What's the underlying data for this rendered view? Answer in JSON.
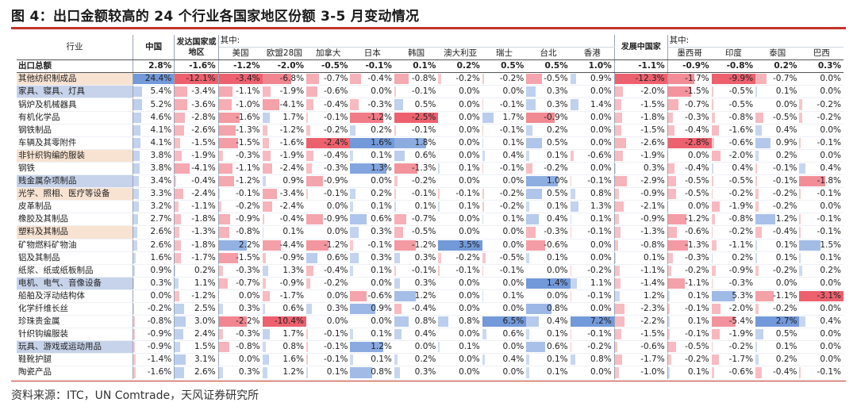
{
  "title": "图 4：出口金额较高的 24 个行业各国家地区份额 3-5 月变动情况",
  "source": "资料来源：ITC，UN Comtrade，天风证券研究所",
  "colors": {
    "positive": "#4f7fd0",
    "negative": "#e8384a",
    "accent": "#c4342a"
  },
  "headers": {
    "industry": "行业",
    "china": "中国",
    "developed": "发达国家或地区",
    "developed_sub": "其中:",
    "developed_list": [
      "美国",
      "欧盟28国",
      "加拿大",
      "日本",
      "韩国",
      "澳大利亚",
      "瑞士",
      "台北",
      "香港"
    ],
    "developing": "发展中国家",
    "developing_sub": "其中:",
    "developing_list": [
      "墨西哥",
      "印度",
      "泰国",
      "巴西"
    ]
  },
  "chart_data": {
    "type": "table",
    "title": "出口金额较高的 24 个行业各国家地区份额 3-5 月变动情况",
    "columns": [
      "中国",
      "发达国家或地区",
      "美国",
      "欧盟28国",
      "加拿大",
      "日本",
      "韩国",
      "澳大利亚",
      "瑞士",
      "台北",
      "香港",
      "发展中国家",
      "墨西哥",
      "印度",
      "泰国",
      "巴西"
    ],
    "rows": [
      {
        "name": "出口总额",
        "total": true,
        "values": [
          "2.8%",
          "-1.6%",
          "-1.2%",
          "-2.0%",
          "-0.5%",
          "-0.1%",
          "0.1%",
          "0.2%",
          "0.5%",
          "0.5%",
          "1.0%",
          "-1.1%",
          "-0.9%",
          "-0.8%",
          "0.2%",
          "0.3%"
        ]
      },
      {
        "name": "其他纺织制成品",
        "hl": "orange",
        "values": [
          "24.4%",
          "-12.1%",
          "-3.4%",
          "-6.8%",
          "-0.7%",
          "-0.4%",
          "-0.8%",
          "-0.2%",
          "-0.2%",
          "-0.5%",
          "0.9%",
          "-12.3%",
          "-1.7%",
          "-9.9%",
          "-0.7%",
          "0.0%"
        ]
      },
      {
        "name": "家具、寝具、灯具",
        "hl": "blue",
        "values": [
          "5.4%",
          "-3.4%",
          "-1.1%",
          "-1.9%",
          "-0.6%",
          "0.0%",
          "-0.1%",
          "0.0%",
          "0.0%",
          "0.3%",
          "0.0%",
          "-2.0%",
          "-1.5%",
          "-0.5%",
          "0.1%",
          "0.0%"
        ]
      },
      {
        "name": "锅炉及机械器具",
        "hl": "",
        "values": [
          "5.2%",
          "-3.6%",
          "-1.0%",
          "-4.1%",
          "-0.4%",
          "-0.3%",
          "0.5%",
          "0.0%",
          "-0.1%",
          "0.3%",
          "1.4%",
          "-1.5%",
          "-0.7%",
          "-0.5%",
          "0.0%",
          "-0.2%"
        ]
      },
      {
        "name": "有机化学品",
        "hl": "",
        "values": [
          "4.6%",
          "-2.8%",
          "-1.6%",
          "1.7%",
          "-0.1%",
          "-1.2%",
          "-2.5%",
          "0.0%",
          "1.7%",
          "-0.9%",
          "0.0%",
          "-1.8%",
          "-0.3%",
          "-0.8%",
          "-0.5%",
          "-0.2%"
        ]
      },
      {
        "name": "钢铁制品",
        "hl": "",
        "values": [
          "4.1%",
          "-2.6%",
          "-1.3%",
          "-1.2%",
          "-0.2%",
          "0.2%",
          "-0.1%",
          "0.0%",
          "-0.1%",
          "0.2%",
          "0.0%",
          "-1.5%",
          "-0.4%",
          "-1.6%",
          "0.4%",
          "0.0%"
        ]
      },
      {
        "name": "车辆及其零附件",
        "hl": "",
        "values": [
          "4.1%",
          "-1.5%",
          "-1.5%",
          "-1.6%",
          "-2.4%",
          "1.6%",
          "1.8%",
          "0.0%",
          "0.1%",
          "0.5%",
          "0.0%",
          "-2.6%",
          "-2.8%",
          "-0.6%",
          "0.9%",
          "-0.1%"
        ]
      },
      {
        "name": "非针织钩编的服装",
        "hl": "orange",
        "values": [
          "3.8%",
          "-1.9%",
          "-0.3%",
          "-1.9%",
          "-0.4%",
          "0.1%",
          "0.6%",
          "0.0%",
          "0.4%",
          "0.1%",
          "-0.6%",
          "-1.9%",
          "0.0%",
          "-2.0%",
          "0.2%",
          "0.0%"
        ]
      },
      {
        "name": "钢铁",
        "hl": "",
        "values": [
          "3.8%",
          "-4.1%",
          "-1.1%",
          "-2.4%",
          "-0.3%",
          "1.3%",
          "-1.3%",
          "0.1%",
          "-0.1%",
          "-0.2%",
          "0.0%",
          "0.3%",
          "-0.4%",
          "0.4%",
          "-0.1%",
          "0.4%"
        ]
      },
      {
        "name": "贱金属杂项制品",
        "hl": "blue",
        "values": [
          "3.4%",
          "-0.4%",
          "-1.2%",
          "0.9%",
          "-0.9%",
          "0.0%",
          "-0.2%",
          "0.0%",
          "0.0%",
          "1.0%",
          "-0.1%",
          "-2.9%",
          "-0.5%",
          "-0.5%",
          "-0.1%",
          "-1.8%"
        ]
      },
      {
        "name": "光学、照相、医疗等设备",
        "hl": "orange",
        "values": [
          "3.3%",
          "-2.4%",
          "-0.1%",
          "-3.4%",
          "-0.1%",
          "0.2%",
          "-0.1%",
          "-0.1%",
          "-0.2%",
          "0.5%",
          "0.8%",
          "-0.9%",
          "-0.5%",
          "-0.2%",
          "-0.2%",
          "-0.1%"
        ]
      },
      {
        "name": "皮革制品",
        "hl": "",
        "values": [
          "3.2%",
          "-1.1%",
          "-0.2%",
          "-2.4%",
          "0.0%",
          "0.1%",
          "0.1%",
          "0.1%",
          "-0.2%",
          "0.1%",
          "1.3%",
          "-2.1%",
          "0.0%",
          "-1.9%",
          "-0.2%",
          "0.0%"
        ]
      },
      {
        "name": "橡胶及其制品",
        "hl": "",
        "values": [
          "2.7%",
          "-1.8%",
          "-0.9%",
          "-0.4%",
          "-0.9%",
          "0.6%",
          "-0.7%",
          "0.0%",
          "0.1%",
          "0.4%",
          "0.1%",
          "-0.9%",
          "-1.2%",
          "-0.8%",
          "1.2%",
          "-0.1%"
        ]
      },
      {
        "name": "塑料及其制品",
        "hl": "orange",
        "values": [
          "2.6%",
          "-1.3%",
          "-0.8%",
          "0.1%",
          "0.0%",
          "0.3%",
          "-0.5%",
          "0.0%",
          "0.0%",
          "-0.3%",
          "-0.1%",
          "-1.3%",
          "-0.6%",
          "-0.2%",
          "-0.4%",
          "-0.1%"
        ]
      },
      {
        "name": "矿物燃料矿物油",
        "hl": "",
        "values": [
          "2.6%",
          "-1.8%",
          "2.2%",
          "-4.4%",
          "-1.2%",
          "-0.1%",
          "-1.2%",
          "3.5%",
          "0.0%",
          "-0.6%",
          "0.0%",
          "-0.8%",
          "-1.3%",
          "-1.1%",
          "0.1%",
          "1.5%"
        ]
      },
      {
        "name": "铝及其制品",
        "hl": "",
        "values": [
          "1.6%",
          "-1.7%",
          "-1.5%",
          "-0.9%",
          "0.6%",
          "0.3%",
          "0.3%",
          "-0.2%",
          "-0.5%",
          "0.1%",
          "0.0%",
          "0.1%",
          "-0.3%",
          "0.2%",
          "0.1%",
          "0.1%"
        ]
      },
      {
        "name": "纸浆、纸或纸板制品",
        "hl": "",
        "values": [
          "0.9%",
          "0.2%",
          "-0.3%",
          "1.3%",
          "-0.4%",
          "0.1%",
          "-0.1%",
          "-0.1%",
          "-0.1%",
          "0.0%",
          "-0.2%",
          "-1.1%",
          "-0.2%",
          "-0.9%",
          "-0.2%",
          "0.2%"
        ]
      },
      {
        "name": "电机、电气、音像设备",
        "hl": "blue",
        "values": [
          "0.3%",
          "1.1%",
          "-0.7%",
          "-0.9%",
          "-0.2%",
          "0.0%",
          "0.3%",
          "0.0%",
          "0.0%",
          "1.4%",
          "1.1%",
          "-1.4%",
          "-1.1%",
          "-0.3%",
          "0.0%",
          "0.0%"
        ]
      },
      {
        "name": "船舶及浮动结构体",
        "hl": "",
        "values": [
          "0.0%",
          "-1.2%",
          "0.0%",
          "-1.7%",
          "0.0%",
          "-0.6%",
          "1.2%",
          "0.0%",
          "0.1%",
          "0.0%",
          "-0.1%",
          "1.2%",
          "0.1%",
          "5.3%",
          "-1.1%",
          "-3.1%"
        ]
      },
      {
        "name": "化学纤维长丝",
        "hl": "",
        "values": [
          "-0.2%",
          "2.5%",
          "0.3%",
          "0.6%",
          "0.3%",
          "0.9%",
          "-0.4%",
          "0.0%",
          "0.0%",
          "0.8%",
          "0.0%",
          "-2.3%",
          "-0.1%",
          "-2.0%",
          "-0.2%",
          "0.0%"
        ]
      },
      {
        "name": "珍珠贵金属",
        "hl": "",
        "values": [
          "-0.8%",
          "3.0%",
          "-2.2%",
          "-10.4%",
          "0.0%",
          "0.0%",
          "0.8%",
          "0.8%",
          "6.5%",
          "0.4%",
          "7.2%",
          "-2.2%",
          "0.1%",
          "-5.4%",
          "2.7%",
          "0.4%"
        ]
      },
      {
        "name": "针织钩编服装",
        "hl": "",
        "values": [
          "-0.9%",
          "2.4%",
          "-0.3%",
          "1.7%",
          "-0.1%",
          "0.1%",
          "0.4%",
          "0.0%",
          "0.6%",
          "0.1%",
          "-0.1%",
          "-1.5%",
          "-0.1%",
          "-1.9%",
          "0.5%",
          "0.0%"
        ]
      },
      {
        "name": "玩具、游戏或运动用品",
        "hl": "blue",
        "values": [
          "-0.9%",
          "1.5%",
          "-0.8%",
          "0.8%",
          "-0.1%",
          "1.2%",
          "0.0%",
          "0.1%",
          "0.0%",
          "0.6%",
          "-0.2%",
          "-0.6%",
          "-0.5%",
          "-0.2%",
          "0.1%",
          "0.0%"
        ]
      },
      {
        "name": "鞋靴护腿",
        "hl": "",
        "values": [
          "-1.4%",
          "3.1%",
          "0.0%",
          "1.6%",
          "-0.1%",
          "0.1%",
          "0.2%",
          "0.0%",
          "0.4%",
          "0.1%",
          "0.8%",
          "-1.7%",
          "-0.2%",
          "-1.7%",
          "0.2%",
          "0.0%"
        ]
      },
      {
        "name": "陶瓷产品",
        "hl": "",
        "values": [
          "-1.6%",
          "2.6%",
          "0.3%",
          "1.2%",
          "0.1%",
          "0.8%",
          "0.3%",
          "0.0%",
          "0.0%",
          "0.1%",
          "0.0%",
          "-1.0%",
          "0.1%",
          "-0.6%",
          "-0.4%",
          "-0.1%"
        ]
      }
    ]
  }
}
